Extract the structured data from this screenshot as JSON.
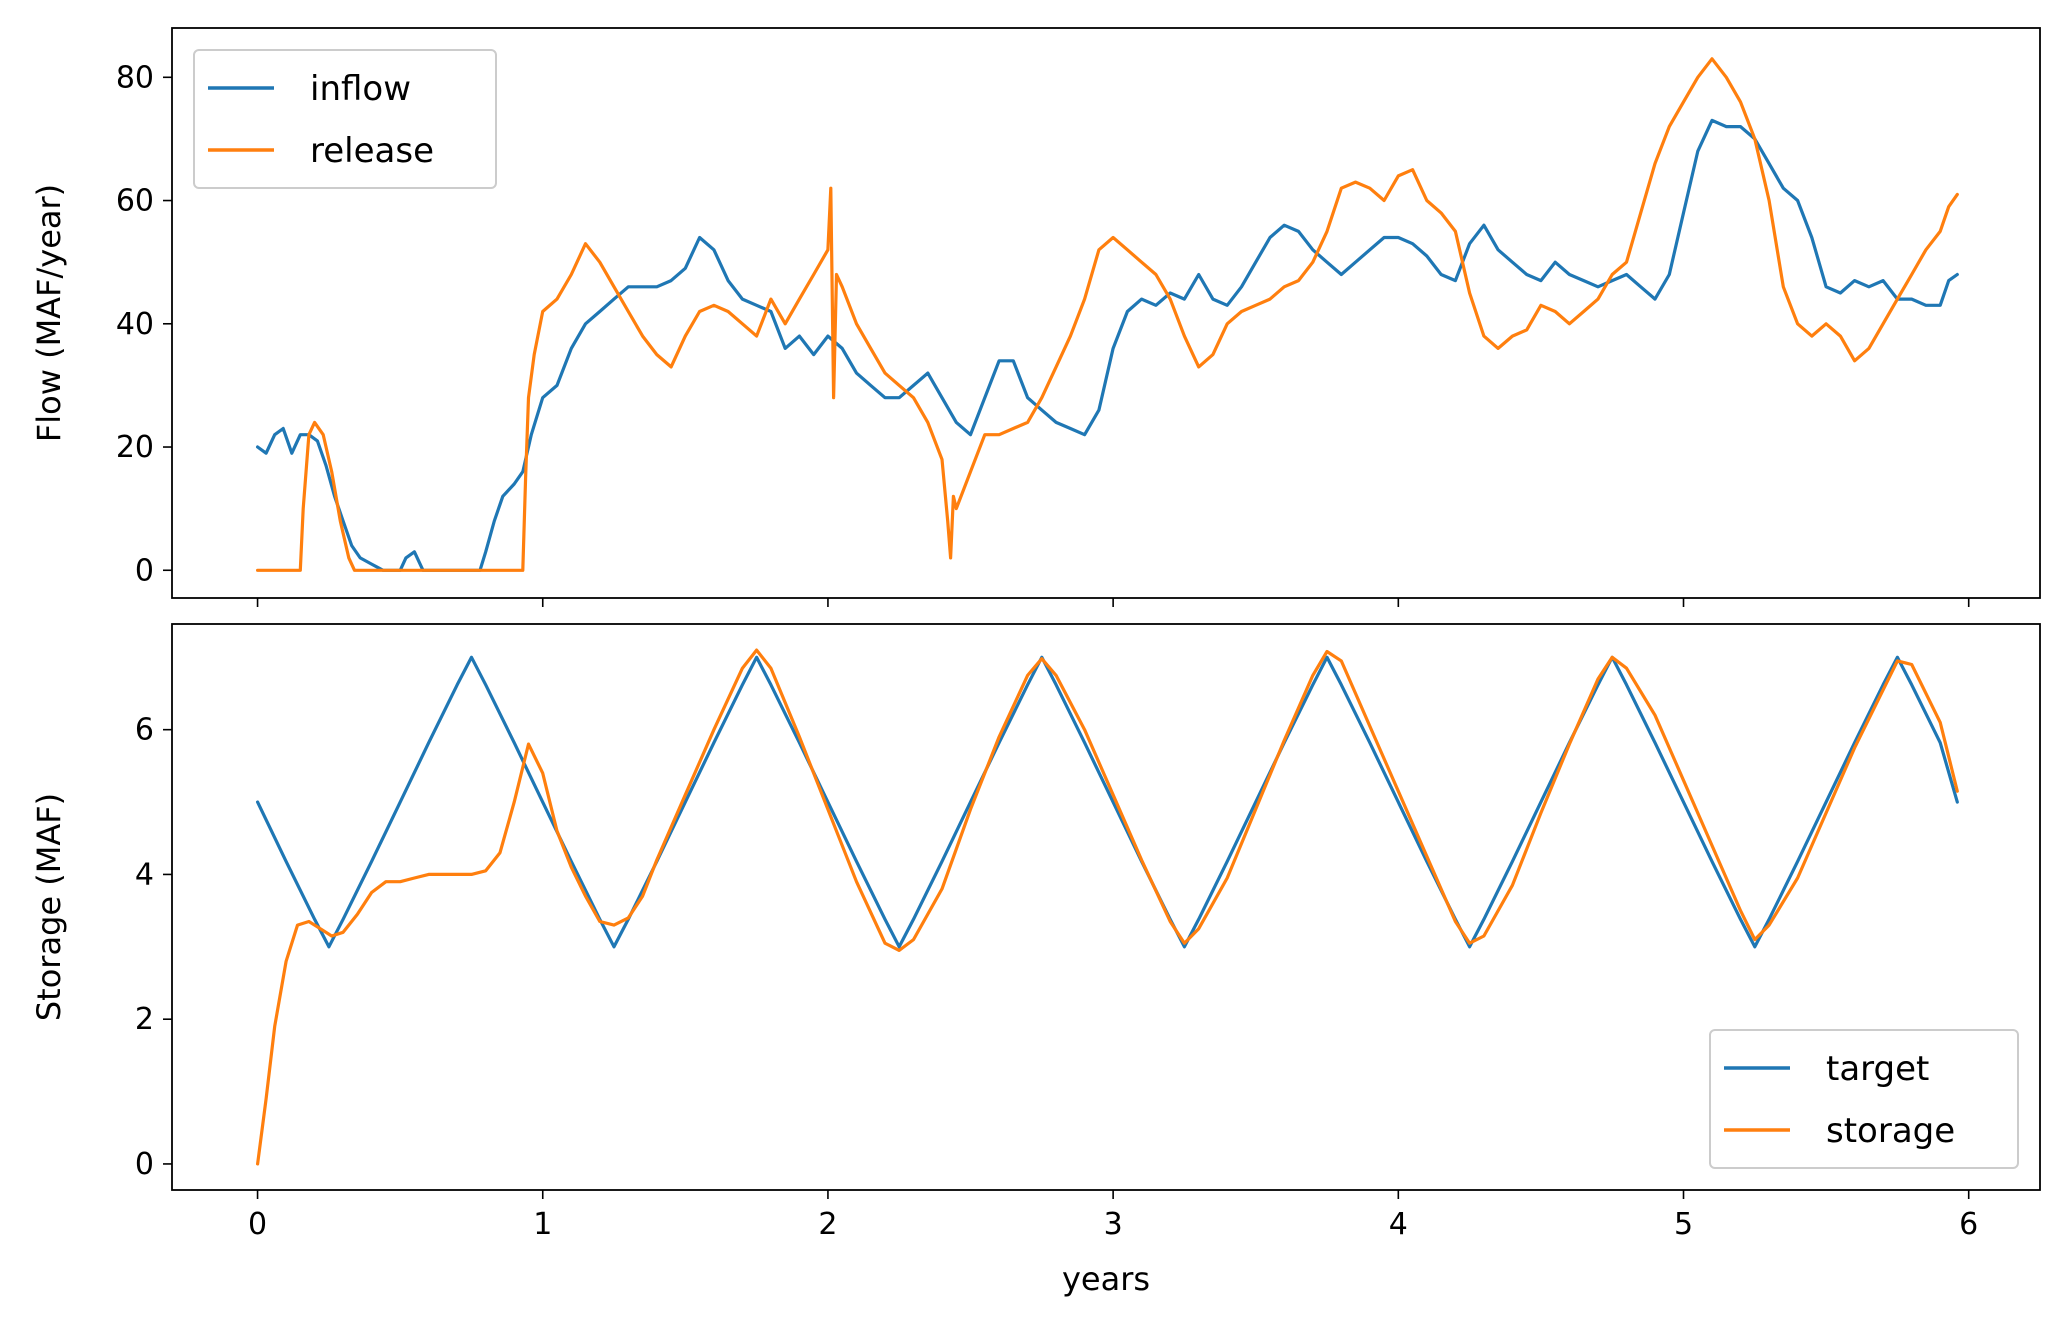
{
  "chart_data": [
    {
      "type": "line",
      "title": "",
      "xlabel": "",
      "ylabel": "Flow (MAF/year)",
      "xlim": [
        -0.3,
        6.25
      ],
      "ylim": [
        -4.5,
        88
      ],
      "xticks": [
        0,
        1,
        2,
        3,
        4,
        5,
        6
      ],
      "show_xtick_labels": false,
      "yticks": [
        0,
        20,
        40,
        60,
        80
      ],
      "yticklabels": [
        "0",
        "20",
        "40",
        "60",
        "80"
      ],
      "grid": false,
      "legend": "top-left",
      "series": [
        {
          "name": "inflow",
          "color": "#1f77b4",
          "x": [
            0,
            0.03,
            0.06,
            0.09,
            0.12,
            0.15,
            0.18,
            0.21,
            0.24,
            0.27,
            0.3,
            0.33,
            0.36,
            0.4,
            0.44,
            0.48,
            0.5,
            0.52,
            0.55,
            0.58,
            0.6,
            0.65,
            0.7,
            0.75,
            0.78,
            0.8,
            0.83,
            0.86,
            0.9,
            0.93,
            0.96,
            1.0,
            1.05,
            1.1,
            1.15,
            1.2,
            1.25,
            1.3,
            1.35,
            1.4,
            1.45,
            1.5,
            1.55,
            1.6,
            1.65,
            1.7,
            1.75,
            1.8,
            1.85,
            1.9,
            1.95,
            2.0,
            2.05,
            2.1,
            2.15,
            2.2,
            2.25,
            2.3,
            2.35,
            2.4,
            2.45,
            2.5,
            2.55,
            2.6,
            2.65,
            2.7,
            2.75,
            2.8,
            2.85,
            2.9,
            2.95,
            3.0,
            3.05,
            3.1,
            3.15,
            3.2,
            3.25,
            3.3,
            3.35,
            3.4,
            3.45,
            3.5,
            3.55,
            3.6,
            3.65,
            3.7,
            3.75,
            3.8,
            3.85,
            3.9,
            3.95,
            4.0,
            4.05,
            4.1,
            4.15,
            4.2,
            4.25,
            4.3,
            4.35,
            4.4,
            4.45,
            4.5,
            4.55,
            4.6,
            4.65,
            4.7,
            4.75,
            4.8,
            4.85,
            4.9,
            4.95,
            5.0,
            5.05,
            5.1,
            5.15,
            5.2,
            5.25,
            5.3,
            5.35,
            5.4,
            5.45,
            5.5,
            5.55,
            5.6,
            5.65,
            5.7,
            5.75,
            5.8,
            5.85,
            5.9,
            5.93,
            5.96
          ],
          "y": [
            20,
            19,
            22,
            23,
            19,
            22,
            22,
            21,
            17,
            12,
            8,
            4,
            2,
            1,
            0,
            0,
            0,
            2,
            3,
            0,
            0,
            0,
            0,
            0,
            0,
            3,
            8,
            12,
            14,
            16,
            22,
            28,
            30,
            36,
            40,
            42,
            44,
            46,
            46,
            46,
            47,
            49,
            54,
            52,
            47,
            44,
            43,
            42,
            36,
            38,
            35,
            38,
            36,
            32,
            30,
            28,
            28,
            30,
            32,
            28,
            24,
            22,
            28,
            34,
            34,
            28,
            26,
            24,
            23,
            22,
            26,
            36,
            42,
            44,
            43,
            45,
            44,
            48,
            44,
            43,
            46,
            50,
            54,
            56,
            55,
            52,
            50,
            48,
            50,
            52,
            54,
            54,
            53,
            51,
            48,
            47,
            53,
            56,
            52,
            50,
            48,
            47,
            50,
            48,
            47,
            46,
            47,
            48,
            46,
            44,
            48,
            58,
            68,
            73,
            72,
            72,
            70,
            66,
            62,
            60,
            54,
            46,
            45,
            47,
            46,
            47,
            44,
            44,
            43,
            43,
            47,
            48
          ]
        },
        {
          "name": "release",
          "color": "#ff7f0e",
          "x": [
            0,
            0.05,
            0.1,
            0.15,
            0.16,
            0.18,
            0.2,
            0.23,
            0.26,
            0.29,
            0.32,
            0.34,
            0.36,
            0.4,
            0.5,
            0.6,
            0.7,
            0.8,
            0.9,
            0.93,
            0.94,
            0.95,
            0.97,
            1.0,
            1.05,
            1.1,
            1.15,
            1.2,
            1.25,
            1.3,
            1.35,
            1.4,
            1.45,
            1.5,
            1.55,
            1.6,
            1.65,
            1.7,
            1.75,
            1.8,
            1.85,
            1.9,
            1.95,
            2.0,
            2.01,
            2.02,
            2.03,
            2.05,
            2.1,
            2.15,
            2.2,
            2.25,
            2.3,
            2.35,
            2.4,
            2.42,
            2.43,
            2.44,
            2.45,
            2.5,
            2.55,
            2.6,
            2.65,
            2.7,
            2.75,
            2.8,
            2.85,
            2.9,
            2.95,
            3.0,
            3.05,
            3.1,
            3.15,
            3.2,
            3.25,
            3.3,
            3.35,
            3.4,
            3.45,
            3.5,
            3.55,
            3.6,
            3.65,
            3.7,
            3.75,
            3.8,
            3.85,
            3.9,
            3.95,
            4.0,
            4.05,
            4.1,
            4.15,
            4.2,
            4.25,
            4.3,
            4.35,
            4.4,
            4.45,
            4.5,
            4.55,
            4.6,
            4.65,
            4.7,
            4.75,
            4.8,
            4.85,
            4.9,
            4.95,
            5.0,
            5.05,
            5.1,
            5.15,
            5.2,
            5.25,
            5.3,
            5.35,
            5.4,
            5.45,
            5.5,
            5.55,
            5.6,
            5.65,
            5.7,
            5.75,
            5.8,
            5.85,
            5.9,
            5.93,
            5.96
          ],
          "y": [
            0,
            0,
            0,
            0,
            10,
            22,
            24,
            22,
            16,
            8,
            2,
            0,
            0,
            0,
            0,
            0,
            0,
            0,
            0,
            0,
            15,
            28,
            35,
            42,
            44,
            48,
            53,
            50,
            46,
            42,
            38,
            35,
            33,
            38,
            42,
            43,
            42,
            40,
            38,
            44,
            40,
            44,
            48,
            52,
            62,
            28,
            48,
            46,
            40,
            36,
            32,
            30,
            28,
            24,
            18,
            8,
            2,
            12,
            10,
            16,
            22,
            22,
            23,
            24,
            28,
            33,
            38,
            44,
            52,
            54,
            52,
            50,
            48,
            44,
            38,
            33,
            35,
            40,
            42,
            43,
            44,
            46,
            47,
            50,
            55,
            62,
            63,
            62,
            60,
            64,
            65,
            60,
            58,
            55,
            45,
            38,
            36,
            38,
            39,
            43,
            42,
            40,
            42,
            44,
            48,
            50,
            58,
            66,
            72,
            76,
            80,
            83,
            80,
            76,
            70,
            60,
            46,
            40,
            38,
            40,
            38,
            34,
            36,
            40,
            44,
            48,
            52,
            55,
            59,
            61
          ]
        }
      ]
    },
    {
      "type": "line",
      "title": "",
      "xlabel": "years",
      "ylabel": "Storage (MAF)",
      "xlim": [
        -0.3,
        6.25
      ],
      "ylim": [
        -0.36,
        7.46
      ],
      "xticks": [
        0,
        1,
        2,
        3,
        4,
        5,
        6
      ],
      "xticklabels": [
        "0",
        "1",
        "2",
        "3",
        "4",
        "5",
        "6"
      ],
      "yticks": [
        0,
        2,
        4,
        6
      ],
      "yticklabels": [
        "0",
        "2",
        "4",
        "6"
      ],
      "grid": false,
      "legend": "bottom-right",
      "series": [
        {
          "name": "target",
          "color": "#1f77b4",
          "x": [
            0,
            0.1,
            0.2,
            0.25,
            0.3,
            0.4,
            0.5,
            0.6,
            0.7,
            0.75,
            0.8,
            0.9,
            1.0,
            1.1,
            1.2,
            1.25,
            1.3,
            1.4,
            1.5,
            1.6,
            1.7,
            1.75,
            1.8,
            1.9,
            2.0,
            2.1,
            2.2,
            2.25,
            2.3,
            2.4,
            2.5,
            2.6,
            2.7,
            2.75,
            2.8,
            2.9,
            3.0,
            3.1,
            3.2,
            3.25,
            3.3,
            3.4,
            3.5,
            3.6,
            3.7,
            3.75,
            3.8,
            3.9,
            4.0,
            4.1,
            4.2,
            4.25,
            4.3,
            4.4,
            4.5,
            4.6,
            4.7,
            4.75,
            4.8,
            4.9,
            5.0,
            5.1,
            5.2,
            5.25,
            5.3,
            5.4,
            5.5,
            5.6,
            5.7,
            5.75,
            5.8,
            5.9,
            5.96
          ],
          "y": [
            5.0,
            4.18,
            3.38,
            3.0,
            3.38,
            4.18,
            5.0,
            5.82,
            6.62,
            7.0,
            6.62,
            5.82,
            5.0,
            4.18,
            3.38,
            3.0,
            3.38,
            4.18,
            5.0,
            5.82,
            6.62,
            7.0,
            6.62,
            5.82,
            5.0,
            4.18,
            3.38,
            3.0,
            3.38,
            4.18,
            5.0,
            5.82,
            6.62,
            7.0,
            6.62,
            5.82,
            5.0,
            4.18,
            3.38,
            3.0,
            3.38,
            4.18,
            5.0,
            5.82,
            6.62,
            7.0,
            6.62,
            5.82,
            5.0,
            4.18,
            3.38,
            3.0,
            3.38,
            4.18,
            5.0,
            5.82,
            6.62,
            7.0,
            6.62,
            5.82,
            5.0,
            4.18,
            3.38,
            3.0,
            3.38,
            4.18,
            5.0,
            5.82,
            6.62,
            7.0,
            6.62,
            5.82,
            5.0
          ]
        },
        {
          "name": "storage",
          "color": "#ff7f0e",
          "x": [
            0,
            0.03,
            0.06,
            0.1,
            0.14,
            0.18,
            0.22,
            0.26,
            0.3,
            0.35,
            0.4,
            0.45,
            0.5,
            0.55,
            0.6,
            0.65,
            0.7,
            0.75,
            0.8,
            0.85,
            0.9,
            0.95,
            1.0,
            1.05,
            1.1,
            1.15,
            1.2,
            1.25,
            1.3,
            1.35,
            1.4,
            1.5,
            1.6,
            1.7,
            1.75,
            1.8,
            1.9,
            2.0,
            2.1,
            2.2,
            2.25,
            2.3,
            2.4,
            2.5,
            2.6,
            2.7,
            2.75,
            2.8,
            2.9,
            3.0,
            3.1,
            3.2,
            3.25,
            3.3,
            3.4,
            3.5,
            3.6,
            3.7,
            3.75,
            3.8,
            3.9,
            4.0,
            4.1,
            4.2,
            4.25,
            4.3,
            4.4,
            4.5,
            4.6,
            4.7,
            4.75,
            4.8,
            4.9,
            5.0,
            5.1,
            5.2,
            5.25,
            5.3,
            5.4,
            5.5,
            5.6,
            5.7,
            5.75,
            5.8,
            5.9,
            5.96
          ],
          "y": [
            0,
            0.9,
            1.9,
            2.8,
            3.3,
            3.35,
            3.25,
            3.15,
            3.2,
            3.45,
            3.75,
            3.9,
            3.9,
            3.95,
            4.0,
            4.0,
            4.0,
            4.0,
            4.05,
            4.3,
            5.0,
            5.8,
            5.4,
            4.6,
            4.1,
            3.7,
            3.35,
            3.3,
            3.4,
            3.7,
            4.2,
            5.1,
            6.0,
            6.85,
            7.1,
            6.85,
            5.9,
            4.9,
            3.9,
            3.05,
            2.95,
            3.1,
            3.8,
            4.9,
            5.9,
            6.75,
            6.98,
            6.75,
            6.0,
            5.1,
            4.2,
            3.35,
            3.05,
            3.25,
            3.95,
            4.9,
            5.85,
            6.75,
            7.08,
            6.95,
            6.05,
            5.15,
            4.25,
            3.35,
            3.05,
            3.15,
            3.85,
            4.85,
            5.8,
            6.7,
            7.0,
            6.85,
            6.2,
            5.3,
            4.4,
            3.5,
            3.1,
            3.3,
            3.95,
            4.85,
            5.75,
            6.55,
            6.95,
            6.9,
            6.1,
            5.15
          ]
        }
      ]
    }
  ]
}
